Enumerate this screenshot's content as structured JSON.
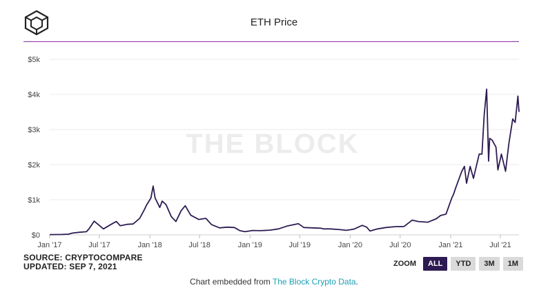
{
  "header": {
    "title": "ETH Price",
    "logo_icon": "cube-logo-icon"
  },
  "chart_data": {
    "type": "line",
    "title": "ETH Price",
    "xlabel": "",
    "ylabel": "",
    "x_tick_labels": [
      "Jan '17",
      "Jul '17",
      "Jan '18",
      "Jul '18",
      "Jan '19",
      "Jul '19",
      "Jan '20",
      "Jul '20",
      "Jan '21",
      "Jul '21"
    ],
    "x_tick_dates": [
      "2017-01-01",
      "2017-07-01",
      "2018-01-01",
      "2018-07-01",
      "2019-01-01",
      "2019-07-01",
      "2020-01-01",
      "2020-07-01",
      "2021-01-01",
      "2021-07-01"
    ],
    "y_tick_labels": [
      "$0",
      "$1k",
      "$2k",
      "$3k",
      "$4k",
      "$5k"
    ],
    "y_ticks": [
      0,
      1000,
      2000,
      3000,
      4000,
      5000
    ],
    "ylim": [
      0,
      5000
    ],
    "xlim": [
      "2017-01-01",
      "2021-09-07"
    ],
    "grid": true,
    "line_color": "#2d1b52",
    "watermark": "THE BLOCK",
    "series": [
      {
        "x": [
          "2017-01-01",
          "2017-02-15",
          "2017-03-10",
          "2017-03-25",
          "2017-04-20",
          "2017-05-15",
          "2017-05-25",
          "2017-06-12",
          "2017-07-16",
          "2017-08-15",
          "2017-09-01",
          "2017-09-15",
          "2017-10-10",
          "2017-11-01",
          "2017-11-25",
          "2017-12-12",
          "2017-12-20",
          "2018-01-05",
          "2018-01-13",
          "2018-01-20",
          "2018-02-06",
          "2018-02-15",
          "2018-03-01",
          "2018-03-20",
          "2018-04-06",
          "2018-04-25",
          "2018-05-10",
          "2018-05-30",
          "2018-06-28",
          "2018-07-24",
          "2018-08-14",
          "2018-09-12",
          "2018-10-10",
          "2018-11-05",
          "2018-11-25",
          "2018-12-14",
          "2019-01-10",
          "2019-02-08",
          "2019-03-15",
          "2019-04-15",
          "2019-05-15",
          "2019-06-26",
          "2019-07-16",
          "2019-08-15",
          "2019-09-15",
          "2019-09-25",
          "2019-10-20",
          "2019-11-25",
          "2019-12-18",
          "2020-01-15",
          "2020-02-14",
          "2020-03-01",
          "2020-03-13",
          "2020-04-10",
          "2020-05-10",
          "2020-06-15",
          "2020-07-15",
          "2020-08-14",
          "2020-09-05",
          "2020-10-10",
          "2020-11-10",
          "2020-11-25",
          "2020-12-15",
          "2021-01-05",
          "2021-01-11",
          "2021-01-20",
          "2021-02-10",
          "2021-02-20",
          "2021-02-28",
          "2021-03-13",
          "2021-03-25",
          "2021-04-15",
          "2021-04-25",
          "2021-05-03",
          "2021-05-12",
          "2021-05-19",
          "2021-05-23",
          "2021-06-01",
          "2021-06-15",
          "2021-06-22",
          "2021-07-05",
          "2021-07-20",
          "2021-08-01",
          "2021-08-15",
          "2021-08-24",
          "2021-09-01",
          "2021-09-03",
          "2021-09-07"
        ],
        "y": [
          8,
          11,
          19,
          50,
          75,
          90,
          180,
          390,
          170,
          310,
          380,
          260,
          300,
          310,
          470,
          720,
          850,
          1050,
          1390,
          1050,
          780,
          960,
          860,
          520,
          380,
          690,
          830,
          560,
          440,
          470,
          290,
          200,
          220,
          210,
          120,
          90,
          125,
          120,
          135,
          170,
          250,
          320,
          210,
          200,
          190,
          170,
          170,
          150,
          130,
          165,
          270,
          220,
          110,
          170,
          210,
          235,
          240,
          420,
          380,
          360,
          460,
          550,
          590,
          1050,
          1150,
          1350,
          1800,
          1950,
          1470,
          1950,
          1610,
          2300,
          2300,
          3400,
          4150,
          2100,
          2750,
          2700,
          2500,
          1850,
          2300,
          1810,
          2600,
          3300,
          3200,
          3800,
          3950,
          3500
        ]
      }
    ]
  },
  "source": {
    "line1": "SOURCE: CRYPTOCOMPARE",
    "line2": "UPDATED: SEP 7, 2021"
  },
  "zoom": {
    "label": "ZOOM",
    "buttons": [
      {
        "label": "ALL",
        "active": true
      },
      {
        "label": "YTD",
        "active": false
      },
      {
        "label": "3M",
        "active": false
      },
      {
        "label": "1M",
        "active": false
      }
    ]
  },
  "footer": {
    "prefix": "Chart embedded from ",
    "link_text": "The Block Crypto Data",
    "suffix": "."
  }
}
